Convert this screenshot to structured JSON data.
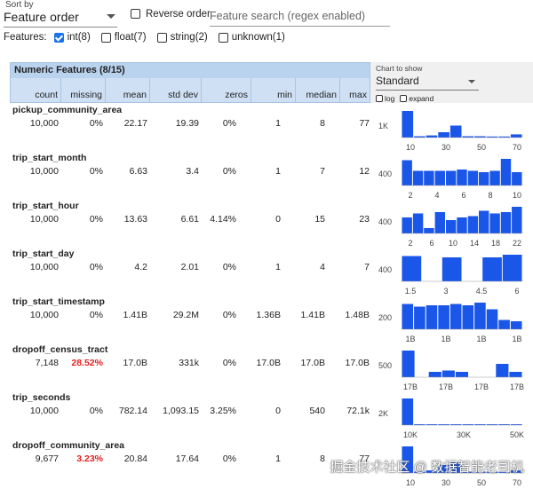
{
  "controls": {
    "sort_by_label": "Sort by",
    "sort_value": "Feature order",
    "reverse_label": "Reverse order",
    "search_placeholder": "Feature search (regex enabled)",
    "features_label": "Features:",
    "feature_filters": [
      {
        "label": "int(8)",
        "checked": true
      },
      {
        "label": "float(7)",
        "checked": false
      },
      {
        "label": "string(2)",
        "checked": false
      },
      {
        "label": "unknown(1)",
        "checked": false
      }
    ]
  },
  "table": {
    "title": "Numeric Features (8/15)",
    "columns": [
      "count",
      "missing",
      "mean",
      "std dev",
      "zeros",
      "min",
      "median",
      "max"
    ]
  },
  "chart_panel": {
    "label": "Chart to show",
    "value": "Standard",
    "log_label": "log",
    "expand_label": "expand"
  },
  "features": [
    {
      "name": "pickup_community_area",
      "count": "10,000",
      "missing": "0%",
      "missing_alert": false,
      "mean": "22.17",
      "std_dev": "19.39",
      "zeros": "0%",
      "min": "1",
      "median": "8",
      "max": "77",
      "chart": {
        "ytick": "1K",
        "xticks": [
          "10",
          "30",
          "50",
          "70"
        ],
        "bars": [
          1.0,
          0.05,
          0.08,
          0.2,
          0.45,
          0.05,
          0.05,
          0.04,
          0.04,
          0.12
        ]
      }
    },
    {
      "name": "trip_start_month",
      "count": "10,000",
      "missing": "0%",
      "missing_alert": false,
      "mean": "6.63",
      "std_dev": "3.4",
      "zeros": "0%",
      "min": "1",
      "median": "7",
      "max": "12",
      "chart": {
        "ytick": "400",
        "xticks": [
          "2",
          "4",
          "6",
          "8",
          "10"
        ],
        "bars": [
          0.95,
          0.55,
          0.55,
          0.55,
          0.55,
          0.6,
          0.55,
          0.5,
          0.55,
          1.0,
          0.5
        ]
      }
    },
    {
      "name": "trip_start_hour",
      "count": "10,000",
      "missing": "0%",
      "missing_alert": false,
      "mean": "13.63",
      "std_dev": "6.61",
      "zeros": "4.14%",
      "min": "0",
      "median": "15",
      "max": "23",
      "chart": {
        "ytick": "400",
        "xticks": [
          "2",
          "6",
          "10",
          "14",
          "18",
          "22"
        ],
        "bars": [
          0.6,
          0.75,
          0.2,
          0.8,
          0.5,
          0.6,
          0.65,
          0.85,
          0.75,
          0.8,
          1.0
        ]
      }
    },
    {
      "name": "trip_start_day",
      "count": "10,000",
      "missing": "0%",
      "missing_alert": false,
      "mean": "4.2",
      "std_dev": "2.01",
      "zeros": "0%",
      "min": "1",
      "median": "4",
      "max": "7",
      "chart": {
        "ytick": "400",
        "xticks": [
          "1.5",
          "3",
          "4.5",
          "6"
        ],
        "bars": [
          0.95,
          0,
          0.9,
          0,
          0.9,
          1.0
        ]
      }
    },
    {
      "name": "trip_start_timestamp",
      "count": "10,000",
      "missing": "0%",
      "missing_alert": false,
      "mean": "1.41B",
      "std_dev": "29.2M",
      "zeros": "0%",
      "min": "1.36B",
      "median": "1.41B",
      "max": "1.48B",
      "chart": {
        "ytick": "200",
        "xticks": [
          "1B",
          "1B",
          "1B",
          "1B"
        ],
        "bars": [
          0.95,
          0.85,
          0.9,
          0.9,
          0.95,
          0.9,
          1.0,
          0.75,
          0.35,
          0.3
        ]
      }
    },
    {
      "name": "dropoff_census_tract",
      "count": "7,148",
      "missing": "28.52%",
      "missing_alert": true,
      "mean": "17.0B",
      "std_dev": "331k",
      "zeros": "0%",
      "min": "17.0B",
      "median": "17.0B",
      "max": "17.0B",
      "chart": {
        "ytick": "500",
        "xticks": [
          "17B",
          "17B",
          "17B",
          "17B"
        ],
        "bars": [
          1.0,
          0,
          0.2,
          0.25,
          0.2,
          0,
          0,
          0.5,
          0.2
        ]
      }
    },
    {
      "name": "trip_seconds",
      "count": "10,000",
      "missing": "0%",
      "missing_alert": false,
      "mean": "782.14",
      "std_dev": "1,093.15",
      "zeros": "3.25%",
      "min": "0",
      "median": "540",
      "max": "72.1k",
      "chart": {
        "ytick": "2K",
        "xticks": [
          "10K",
          "30K",
          "50K"
        ],
        "bars": [
          1.0,
          0.03,
          0.02,
          0.02,
          0.01,
          0.01,
          0.01,
          0.01,
          0.01,
          0.01
        ]
      }
    },
    {
      "name": "dropoff_community_area",
      "count": "9,677",
      "missing": "3.23%",
      "missing_alert": true,
      "mean": "20.84",
      "std_dev": "17.64",
      "zeros": "0%",
      "min": "1",
      "median": "8",
      "max": "77",
      "chart": {
        "ytick": "",
        "xticks": [
          "10",
          "30",
          "50",
          "70"
        ],
        "bars": [
          1.0,
          0.05,
          0.1,
          0.3,
          0.4,
          0.05,
          0.05,
          0.05,
          0.04,
          0.1
        ]
      }
    }
  ],
  "watermark": "掘金技术社区 @ 数据智能老司机",
  "colors": {
    "bar": "#1a56e8",
    "header_bg": "#cfe0f4",
    "alert": "#e52020",
    "checkbox": "#1a73e8"
  }
}
